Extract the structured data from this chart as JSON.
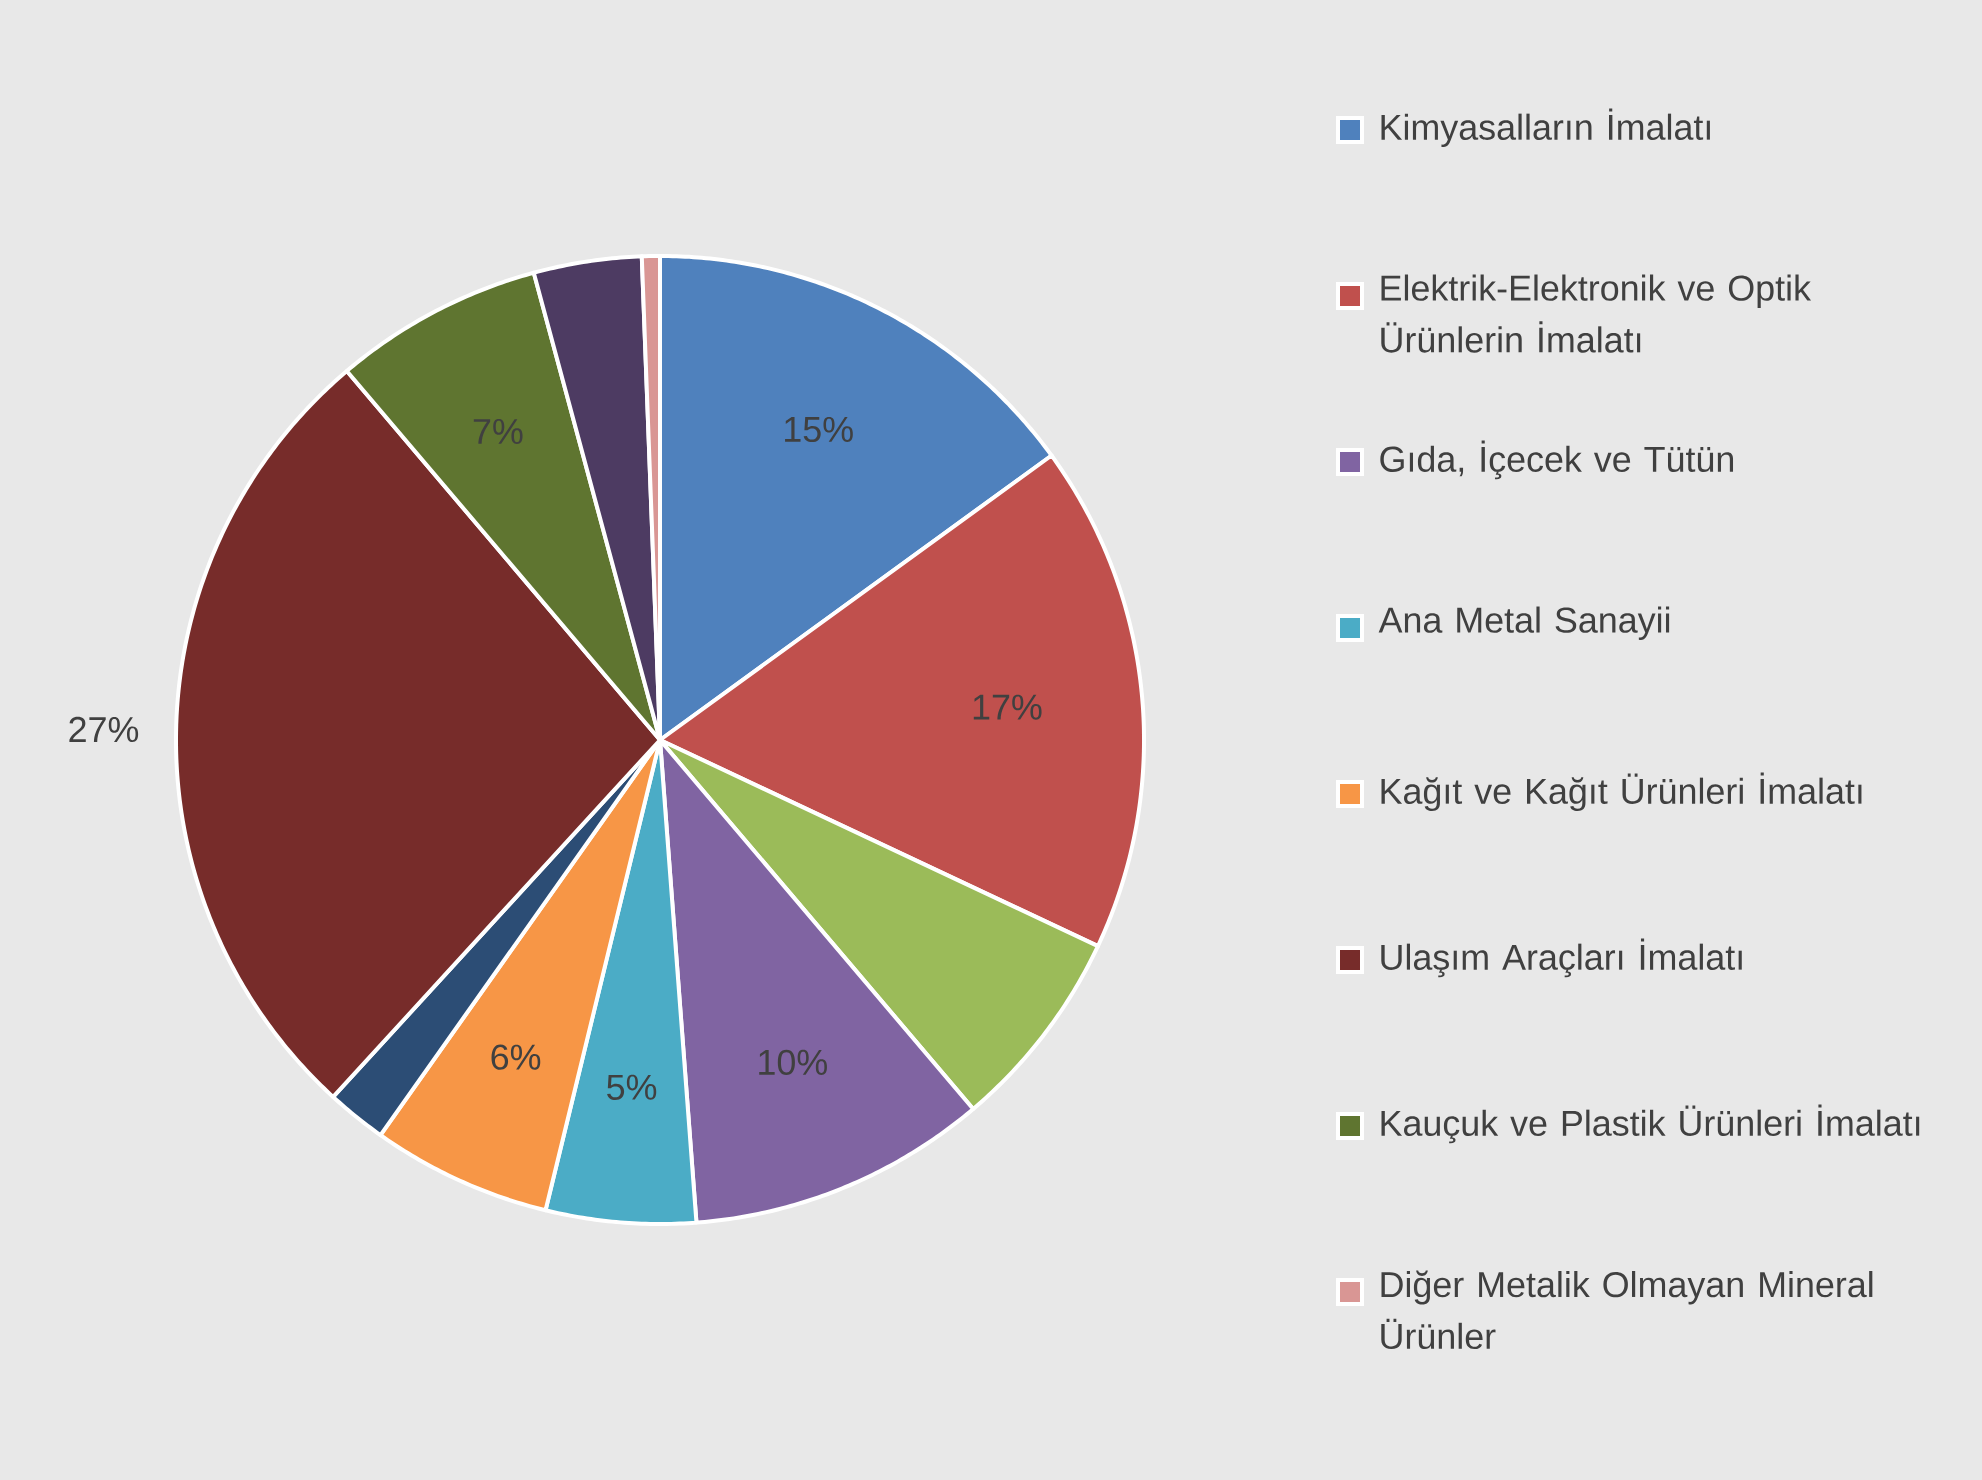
{
  "chart_data": {
    "type": "pie",
    "categories": [
      "Kimyasalların  İmalatı",
      "Elektrik-Elektronik ve Optik Ürünlerin İmalatı",
      null,
      "Gıda, İçecek ve Tütün",
      "Ana Metal Sanayii",
      "Kağıt ve Kağıt Ürünleri İmalatı",
      null,
      "Ulaşım Araçları İmalatı",
      "Kauçuk ve Plastik Ürünleri İmalatı",
      null,
      "Diğer Metalik Olmayan Mineral Ürünler"
    ],
    "values": [
      15,
      17,
      6.8,
      10,
      5,
      6,
      2,
      27,
      7,
      3.6,
      0.6
    ],
    "colors": [
      "#4f81bd",
      "#c0504d",
      "#9bbb59",
      "#8064a2",
      "#4bacc6",
      "#f79646",
      "#2c4d75",
      "#772c2a",
      "#5f7530",
      "#4d3b62",
      "#d99694"
    ],
    "value_labels": [
      "15%",
      "17%",
      null,
      "10%",
      "5%",
      "6%",
      null,
      "27%",
      "7%",
      null,
      null
    ],
    "legend": "right"
  }
}
